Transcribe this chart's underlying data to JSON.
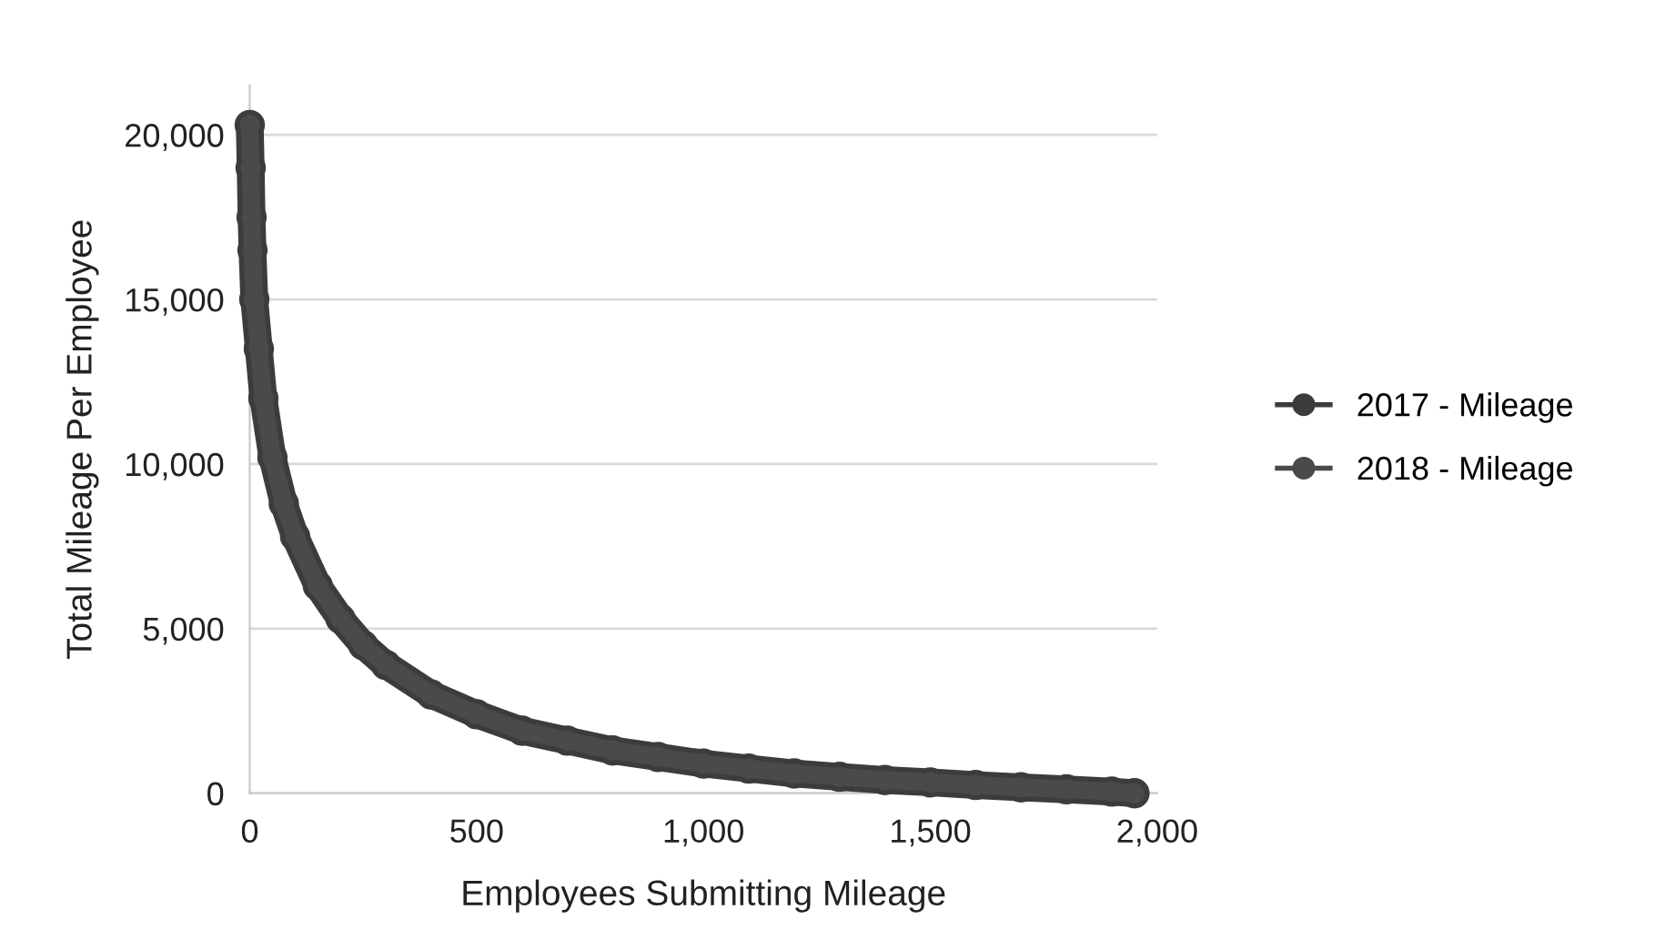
{
  "chart_data": {
    "type": "line",
    "xlabel": "Employees Submitting Mileage",
    "ylabel": "Total Mileage Per Employee",
    "xlim": [
      0,
      2000
    ],
    "xticks": [
      0,
      {
        "value": 500,
        "label": "500"
      },
      {
        "value": 1000,
        "label": "1,000"
      },
      {
        "value": 1500,
        "label": "1,500"
      },
      {
        "value": 2000,
        "label": "2,000"
      }
    ],
    "ylim": [
      0,
      21500
    ],
    "yticks": [
      0,
      {
        "value": 5000,
        "label": "5,000"
      },
      {
        "value": 10000,
        "label": "10,000"
      },
      {
        "value": 15000,
        "label": "15,000"
      },
      {
        "value": 20000,
        "label": "20,000"
      }
    ],
    "grid": "y",
    "legend": "right",
    "marker": "circle",
    "line_style": "solid",
    "series": [
      {
        "name": "2017 - Mileage",
        "color": "#3c3c3c",
        "x": [
          0,
          2,
          4,
          6,
          10,
          20,
          30,
          50,
          75,
          100,
          150,
          200,
          250,
          300,
          400,
          500,
          600,
          700,
          800,
          900,
          1000,
          1100,
          1200,
          1300,
          1400,
          1500,
          1600,
          1700,
          1800,
          1900,
          1950
        ],
        "values": [
          20300,
          19000,
          17500,
          16500,
          15000,
          13500,
          12000,
          10200,
          8800,
          7800,
          6300,
          5300,
          4500,
          3900,
          3000,
          2400,
          1900,
          1600,
          1300,
          1100,
          900,
          750,
          600,
          500,
          400,
          330,
          250,
          180,
          120,
          50,
          0
        ]
      },
      {
        "name": "2018 - Mileage",
        "color": "#4a4a4a",
        "x": [
          0,
          2,
          4,
          6,
          10,
          20,
          30,
          50,
          75,
          100,
          150,
          200,
          250,
          300,
          400,
          500,
          600,
          700,
          800,
          900,
          1000,
          1100,
          1200,
          1300,
          1400,
          1500,
          1600,
          1700,
          1800,
          1900,
          1950
        ],
        "values": [
          20300,
          19000,
          17500,
          16500,
          15000,
          13500,
          12000,
          10200,
          8800,
          7800,
          6300,
          5300,
          4500,
          3900,
          3000,
          2400,
          1900,
          1600,
          1300,
          1100,
          900,
          750,
          600,
          500,
          400,
          330,
          250,
          180,
          120,
          50,
          0
        ]
      }
    ]
  }
}
